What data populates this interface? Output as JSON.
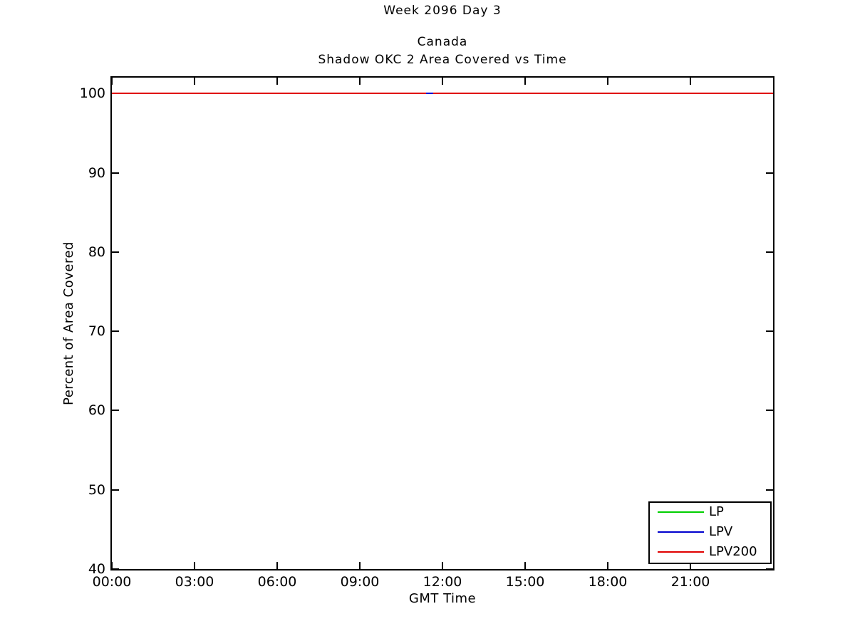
{
  "chart_data": {
    "type": "line",
    "figure_title": "Week 2096 Day 3",
    "title_line1": "Canada",
    "title_line2": "Shadow OKC 2 Area Covered vs Time",
    "xlabel": "GMT Time",
    "ylabel": "Percent of Area Covered",
    "x_axis": {
      "tick_labels": [
        "00:00",
        "03:00",
        "06:00",
        "09:00",
        "12:00",
        "15:00",
        "18:00",
        "21:00"
      ],
      "tick_hours": [
        0,
        3,
        6,
        9,
        12,
        15,
        18,
        21
      ],
      "range_hours": [
        0,
        24
      ]
    },
    "y_axis": {
      "tick_labels": [
        "40",
        "50",
        "60",
        "70",
        "80",
        "90",
        "100"
      ],
      "ticks": [
        40,
        50,
        60,
        70,
        80,
        90,
        100
      ],
      "range": [
        40,
        102
      ]
    },
    "grid": false,
    "background_color": "#FFFFFF",
    "axis_color": "#000000",
    "legend": {
      "position": "bottom-right"
    },
    "series": [
      {
        "name": "LP",
        "color": "#00CF00",
        "x_hours": [
          0,
          24
        ],
        "values": [
          100,
          100
        ]
      },
      {
        "name": "LPV",
        "color": "#0000CD",
        "x_hours": [
          0,
          24
        ],
        "values": [
          100,
          100
        ],
        "visible_segment_hours": [
          11.4,
          11.67
        ]
      },
      {
        "name": "LPV200",
        "color": "#E00000",
        "x_hours": [
          0,
          24
        ],
        "values": [
          100,
          100
        ]
      }
    ]
  }
}
